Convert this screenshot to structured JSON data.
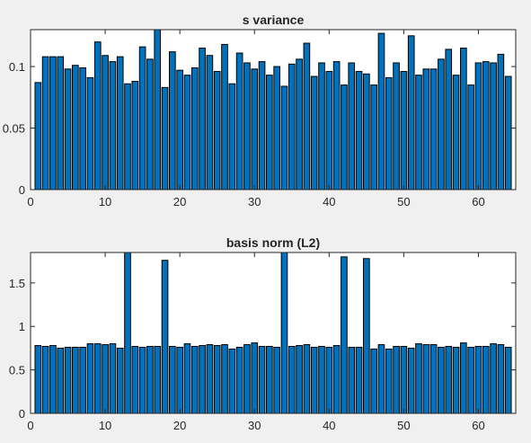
{
  "chart_data": [
    {
      "type": "bar",
      "title": "s variance",
      "xlabel": "",
      "ylabel": "",
      "xlim": [
        0,
        65
      ],
      "ylim": [
        0,
        0.13
      ],
      "xticks": [
        0,
        10,
        20,
        30,
        40,
        50,
        60
      ],
      "yticks": [
        0,
        0.05,
        0.1
      ],
      "ytick_labels": [
        "0",
        "0.05",
        "0.1"
      ],
      "grid": false,
      "bar_color": "#0072bd",
      "x": [
        1,
        2,
        3,
        4,
        5,
        6,
        7,
        8,
        9,
        10,
        11,
        12,
        13,
        14,
        15,
        16,
        17,
        18,
        19,
        20,
        21,
        22,
        23,
        24,
        25,
        26,
        27,
        28,
        29,
        30,
        31,
        32,
        33,
        34,
        35,
        36,
        37,
        38,
        39,
        40,
        41,
        42,
        43,
        44,
        45,
        46,
        47,
        48,
        49,
        50,
        51,
        52,
        53,
        54,
        55,
        56,
        57,
        58,
        59,
        60,
        61,
        62,
        63,
        64
      ],
      "values": [
        0.087,
        0.108,
        0.108,
        0.108,
        0.098,
        0.101,
        0.099,
        0.091,
        0.12,
        0.109,
        0.104,
        0.108,
        0.086,
        0.088,
        0.116,
        0.106,
        0.13,
        0.083,
        0.112,
        0.097,
        0.093,
        0.099,
        0.115,
        0.109,
        0.096,
        0.118,
        0.086,
        0.111,
        0.103,
        0.098,
        0.104,
        0.093,
        0.1,
        0.084,
        0.102,
        0.106,
        0.119,
        0.092,
        0.103,
        0.096,
        0.104,
        0.085,
        0.103,
        0.096,
        0.094,
        0.085,
        0.127,
        0.091,
        0.103,
        0.096,
        0.125,
        0.093,
        0.098,
        0.098,
        0.106,
        0.114,
        0.093,
        0.115,
        0.085,
        0.103,
        0.104,
        0.103,
        0.11,
        0.092
      ]
    },
    {
      "type": "bar",
      "title": "basis norm (L2)",
      "xlabel": "",
      "ylabel": "",
      "xlim": [
        0,
        65
      ],
      "ylim": [
        0,
        1.85
      ],
      "xticks": [
        0,
        10,
        20,
        30,
        40,
        50,
        60
      ],
      "yticks": [
        0,
        0.5,
        1,
        1.5
      ],
      "ytick_labels": [
        "0",
        "0.5",
        "1",
        "1.5"
      ],
      "grid": false,
      "bar_color": "#0072bd",
      "x": [
        1,
        2,
        3,
        4,
        5,
        6,
        7,
        8,
        9,
        10,
        11,
        12,
        13,
        14,
        15,
        16,
        17,
        18,
        19,
        20,
        21,
        22,
        23,
        24,
        25,
        26,
        27,
        28,
        29,
        30,
        31,
        32,
        33,
        34,
        35,
        36,
        37,
        38,
        39,
        40,
        41,
        42,
        43,
        44,
        45,
        46,
        47,
        48,
        49,
        50,
        51,
        52,
        53,
        54,
        55,
        56,
        57,
        58,
        59,
        60,
        61,
        62,
        63,
        64
      ],
      "values": [
        0.78,
        0.77,
        0.78,
        0.75,
        0.76,
        0.76,
        0.76,
        0.8,
        0.8,
        0.79,
        0.8,
        0.75,
        1.85,
        0.77,
        0.76,
        0.77,
        0.77,
        1.76,
        0.77,
        0.76,
        0.8,
        0.77,
        0.78,
        0.79,
        0.78,
        0.79,
        0.74,
        0.76,
        0.79,
        0.81,
        0.77,
        0.77,
        0.76,
        1.85,
        0.77,
        0.78,
        0.79,
        0.76,
        0.77,
        0.76,
        0.78,
        1.8,
        0.76,
        0.76,
        1.78,
        0.74,
        0.79,
        0.74,
        0.77,
        0.77,
        0.75,
        0.8,
        0.79,
        0.79,
        0.76,
        0.77,
        0.76,
        0.81,
        0.76,
        0.77,
        0.77,
        0.8,
        0.79,
        0.76
      ]
    }
  ]
}
